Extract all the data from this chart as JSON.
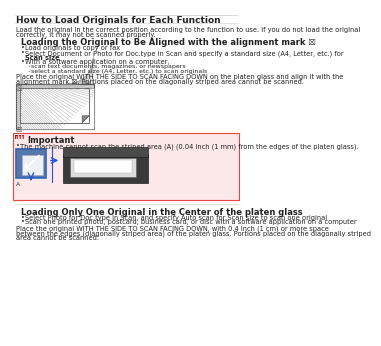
{
  "page_bg": "#ffffff",
  "title": "How to Load Originals for Each Function",
  "title_fontsize": 6.5,
  "intro_text1": "Load the original in the correct position according to the function to use. If you do not load the original",
  "intro_text2": "correctly, it may not be scanned properly.",
  "intro_fontsize": 4.8,
  "section1_title": "Loading the Original to Be Aligned with the alignment mark ☒",
  "section1_fontsize": 6.0,
  "bullet1_items": [
    "Load originals to copy or fax",
    "Select Document or Photo for Doc.type in Scan and specify a standard size (A4, Letter, etc.) for",
    "Scan size",
    "With a software application on a computer,"
  ],
  "bullet1_indent": [
    false,
    false,
    true,
    false
  ],
  "bullet2_items": [
    "scan text documents, magazines, or newspapers",
    "select a standard size (A4, Letter, etc.) to scan originals"
  ],
  "place_text1": "Place the original WITH THE SIDE TO SCAN FACING DOWN on the platen glass and align it with the",
  "place_text2": "alignment mark ☒. Portions placed on the diagonally striped area cannot be scanned.",
  "important_title": "Important",
  "important_text": "The machine cannot scan the striped area (A) (0.04 inch (1 mm) from the edges of the platen glass).",
  "important_bg": "#fce8e8",
  "important_border": "#ee4444",
  "important_icon_color": "#cc1111",
  "section2_title": "Loading Only One Original in the Center of the platen glass",
  "section2_fontsize": 6.0,
  "bullet3_items": [
    "Select Photo for Doc.type in Scan, and specify Auto scan for Scan size to scan one original",
    "Scan one printed photo, postcard, business card, or disc with a software application on a computer"
  ],
  "place2_text1": "Place the original WITH THE SIDE TO SCAN FACING DOWN, with 0.4 inch (1 cm) or more space",
  "place2_text2": "between the edges (diagonally striped area) of the platen glass. Portions placed on the diagonally striped",
  "place2_text3": "area cannot be scanned.",
  "body_fontsize": 4.8,
  "bullet_fontsize": 4.8
}
